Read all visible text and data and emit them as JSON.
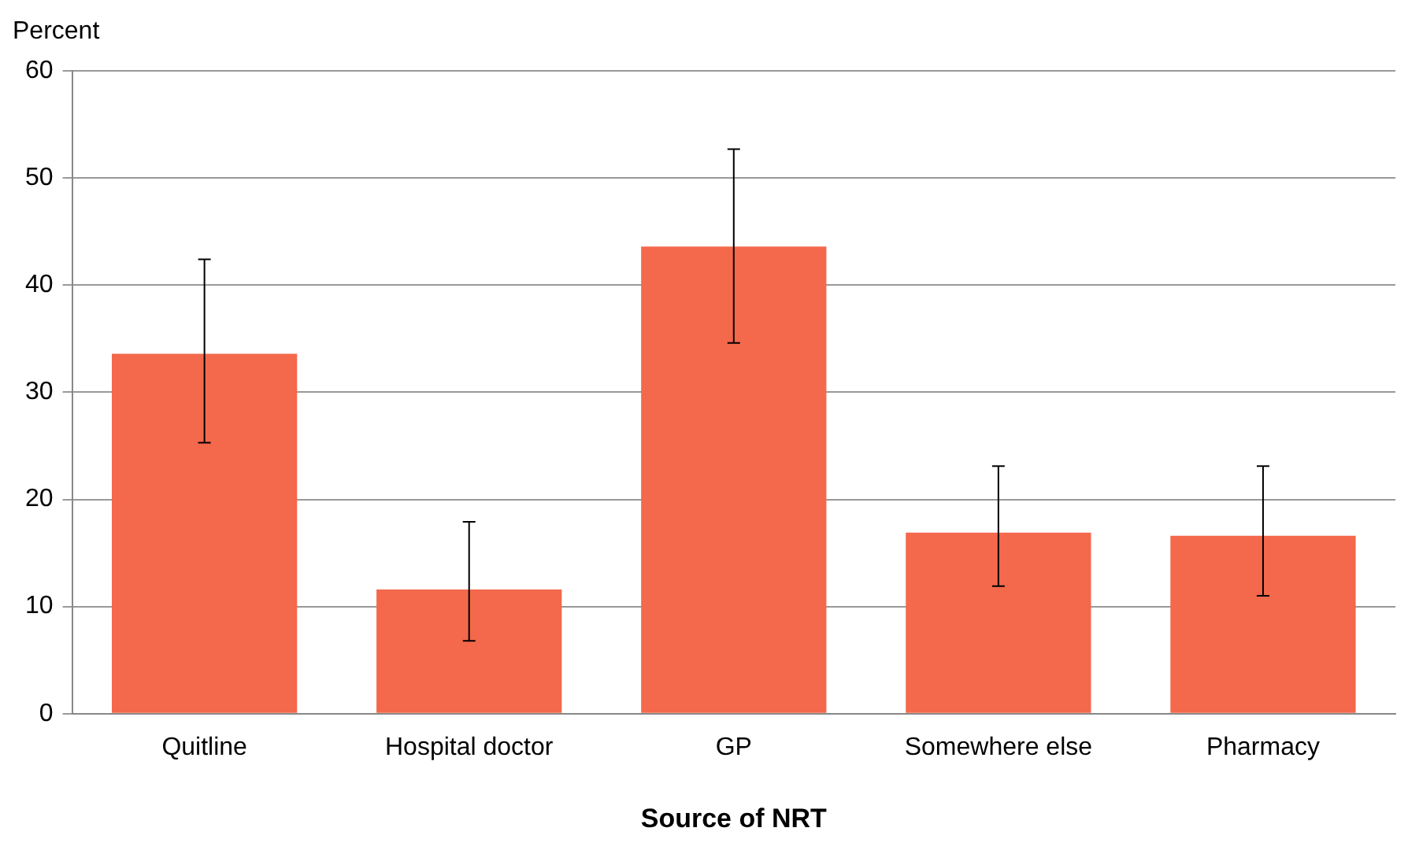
{
  "chart_data": {
    "type": "bar",
    "xlabel": "Source of NRT",
    "ylabel": "Percent",
    "categories": [
      "Quitline",
      "Hospital doctor",
      "GP",
      "Somewhere else",
      "Pharmacy"
    ],
    "values": [
      33.6,
      11.6,
      43.6,
      16.9,
      16.6
    ],
    "errors": [
      [
        25.3,
        42.4
      ],
      [
        6.8,
        17.9
      ],
      [
        34.6,
        52.7
      ],
      [
        11.9,
        23.1
      ],
      [
        11.0,
        23.1
      ]
    ],
    "color": "#f4684b",
    "ylim": [
      0,
      60
    ],
    "yticks": [
      0,
      10,
      20,
      30,
      40,
      50,
      60
    ],
    "grid": "y",
    "legend": false
  }
}
